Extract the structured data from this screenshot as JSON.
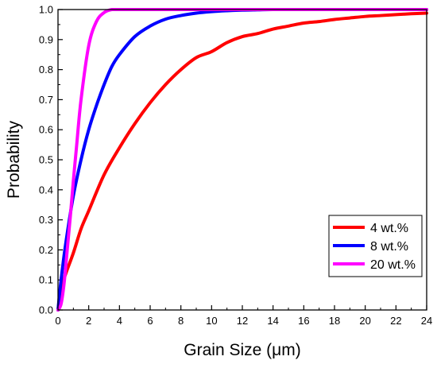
{
  "chart_data": {
    "type": "line",
    "xlabel": "Grain Size (μm)",
    "ylabel": "Probability",
    "xlim": [
      0,
      24
    ],
    "ylim": [
      0,
      1.0
    ],
    "xticks": [
      "0",
      "2",
      "4",
      "6",
      "8",
      "10",
      "12",
      "14",
      "16",
      "18",
      "20",
      "22",
      "24"
    ],
    "yticks": [
      "0.0",
      "0.1",
      "0.2",
      "0.3",
      "0.4",
      "0.5",
      "0.6",
      "0.7",
      "0.8",
      "0.9",
      "1.0"
    ],
    "grid": false,
    "legend": "lower-right",
    "series": [
      {
        "name": "4 wt.%",
        "color": "#ff0000",
        "x": [
          0,
          0.2,
          0.5,
          1,
          1.5,
          2,
          3,
          4,
          5,
          6,
          7,
          8,
          9,
          10,
          11,
          12,
          13,
          14,
          15,
          16,
          17,
          18,
          19,
          20,
          21,
          22,
          23,
          24
        ],
        "y": [
          0,
          0.07,
          0.12,
          0.19,
          0.27,
          0.33,
          0.45,
          0.54,
          0.62,
          0.69,
          0.75,
          0.8,
          0.84,
          0.86,
          0.89,
          0.91,
          0.92,
          0.935,
          0.945,
          0.955,
          0.96,
          0.967,
          0.972,
          0.977,
          0.98,
          0.983,
          0.986,
          0.988
        ]
      },
      {
        "name": "8 wt.%",
        "color": "#0000ff",
        "x": [
          0,
          0.2,
          0.5,
          1,
          1.5,
          2,
          2.5,
          3,
          3.5,
          4,
          5,
          6,
          7,
          8,
          9,
          10,
          11,
          12,
          13,
          14,
          16,
          18,
          20,
          22,
          24
        ],
        "y": [
          0,
          0.1,
          0.22,
          0.38,
          0.5,
          0.6,
          0.68,
          0.75,
          0.81,
          0.85,
          0.91,
          0.945,
          0.968,
          0.98,
          0.988,
          0.993,
          0.996,
          0.998,
          0.999,
          1.0,
          1.0,
          1.0,
          1.0,
          1.0,
          1.0
        ]
      },
      {
        "name": "20 wt.%",
        "color": "#ff00ff",
        "x": [
          0,
          0.2,
          0.4,
          0.6,
          0.8,
          1,
          1.2,
          1.5,
          2,
          2.5,
          3,
          3.5,
          4,
          6,
          8,
          12,
          16,
          20,
          24
        ],
        "y": [
          0,
          0.02,
          0.09,
          0.2,
          0.31,
          0.43,
          0.54,
          0.7,
          0.88,
          0.96,
          0.99,
          1.0,
          1.0,
          1.0,
          1.0,
          1.0,
          1.0,
          1.0,
          1.0
        ]
      }
    ]
  }
}
